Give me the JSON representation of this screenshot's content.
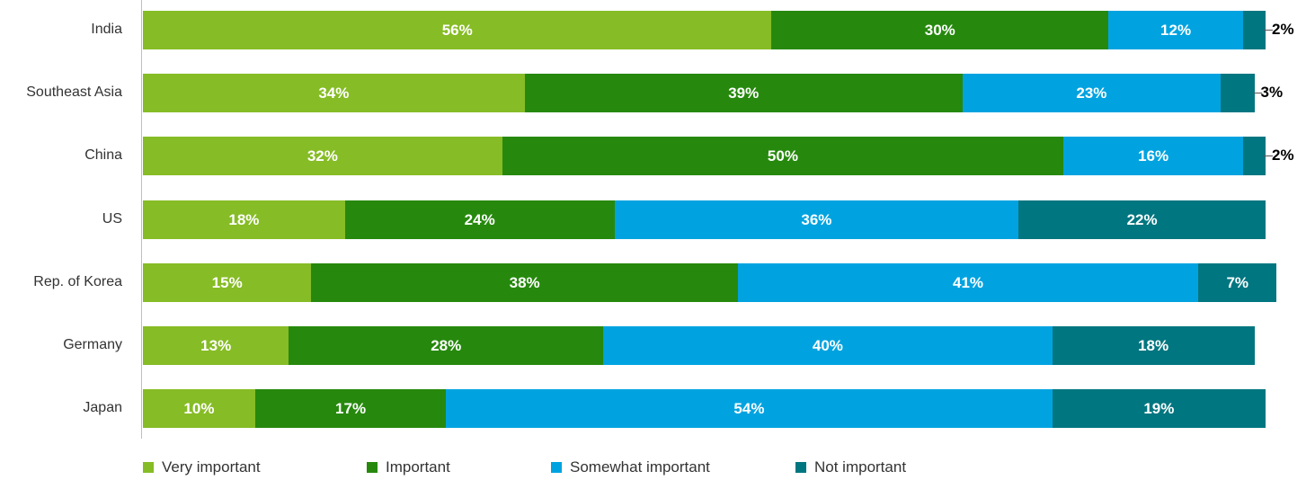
{
  "chart_data": {
    "type": "bar",
    "orientation": "horizontal",
    "stacked": true,
    "categories": [
      "India",
      "Southeast Asia",
      "China",
      "US",
      "Rep. of Korea",
      "Germany",
      "Japan"
    ],
    "series": [
      {
        "name": "Very important",
        "color": "#86bc25",
        "values": [
          56,
          34,
          32,
          18,
          15,
          13,
          10
        ]
      },
      {
        "name": "Important",
        "color": "#26890d",
        "values": [
          30,
          39,
          50,
          24,
          38,
          28,
          17
        ]
      },
      {
        "name": "Somewhat important",
        "color": "#00a3e0",
        "values": [
          12,
          23,
          16,
          36,
          41,
          40,
          54
        ]
      },
      {
        "name": "Not important",
        "color": "#007680",
        "values": [
          2,
          3,
          2,
          22,
          7,
          18,
          19
        ]
      }
    ],
    "labels": [
      [
        "56%",
        "30%",
        "12%",
        "2%"
      ],
      [
        "34%",
        "39%",
        "23%",
        "3%"
      ],
      [
        "32%",
        "50%",
        "16%",
        "2%"
      ],
      [
        "18%",
        "24%",
        "36%",
        "22%"
      ],
      [
        "15%",
        "38%",
        "41%",
        "7%"
      ],
      [
        "13%",
        "28%",
        "40%",
        "18%"
      ],
      [
        "10%",
        "17%",
        "54%",
        "19%"
      ]
    ],
    "xlim": [
      0,
      100
    ],
    "legend_position": "bottom",
    "grid": false
  }
}
